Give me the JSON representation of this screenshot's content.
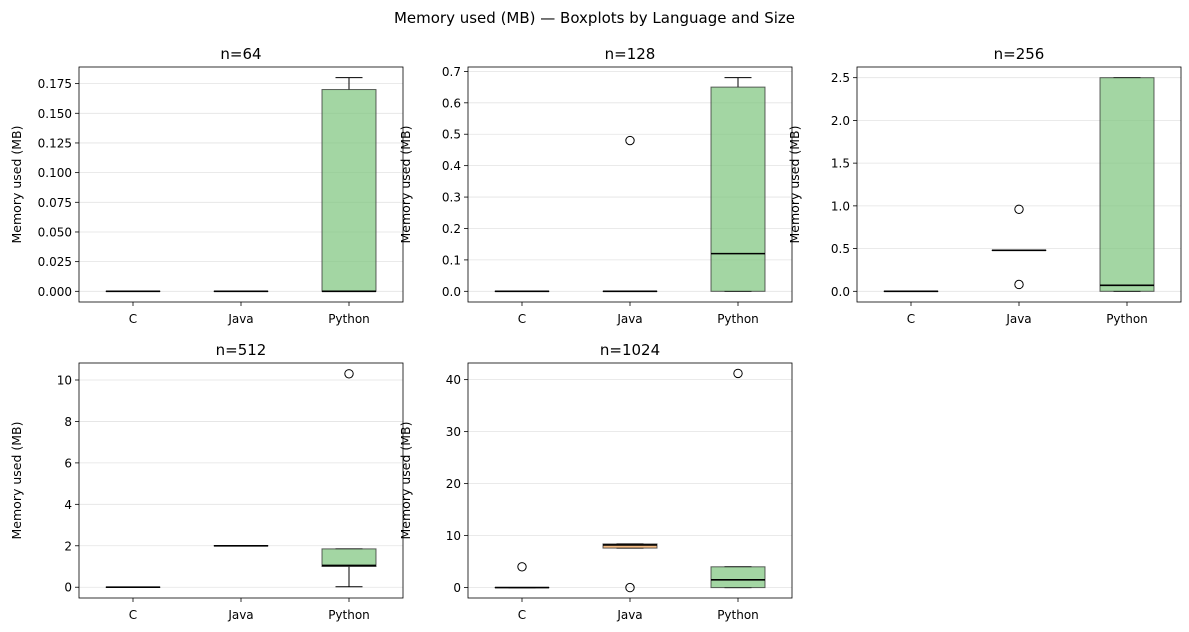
{
  "suptitle": "Memory used (MB) — Boxplots by Language and Size",
  "colors": {
    "C": "#5b8fc9",
    "Java": "#f0a050",
    "Python": "#7cc47c"
  },
  "chart_data": [
    {
      "type": "boxplot",
      "title": "n=64",
      "ylabel": "Memory used (MB)",
      "categories": [
        "C",
        "Java",
        "Python"
      ],
      "ylim": [
        -0.009,
        0.189
      ],
      "yticks": [
        0.0,
        0.025,
        0.05,
        0.075,
        0.1,
        0.125,
        0.15,
        0.175
      ],
      "ytick_labels": [
        "0.000",
        "0.025",
        "0.050",
        "0.075",
        "0.100",
        "0.125",
        "0.150",
        "0.175"
      ],
      "grid": true,
      "boxes": [
        {
          "whislo": 0,
          "q1": 0,
          "med": 0,
          "q3": 0,
          "whishi": 0,
          "fliers": []
        },
        {
          "whislo": 0,
          "q1": 0,
          "med": 0,
          "q3": 0,
          "whishi": 0,
          "fliers": []
        },
        {
          "whislo": 0,
          "q1": 0,
          "med": 0,
          "q3": 0.17,
          "whishi": 0.18,
          "fliers": []
        }
      ]
    },
    {
      "type": "boxplot",
      "title": "n=128",
      "ylabel": "Memory used (MB)",
      "categories": [
        "C",
        "Java",
        "Python"
      ],
      "ylim": [
        -0.034,
        0.714
      ],
      "yticks": [
        0.0,
        0.1,
        0.2,
        0.3,
        0.4,
        0.5,
        0.6,
        0.7
      ],
      "ytick_labels": [
        "0.0",
        "0.1",
        "0.2",
        "0.3",
        "0.4",
        "0.5",
        "0.6",
        "0.7"
      ],
      "grid": true,
      "boxes": [
        {
          "whislo": 0,
          "q1": 0,
          "med": 0,
          "q3": 0,
          "whishi": 0,
          "fliers": []
        },
        {
          "whislo": 0,
          "q1": 0,
          "med": 0,
          "q3": 0,
          "whishi": 0,
          "fliers": [
            0.48
          ]
        },
        {
          "whislo": 0,
          "q1": 0,
          "med": 0.12,
          "q3": 0.65,
          "whishi": 0.68,
          "fliers": []
        }
      ]
    },
    {
      "type": "boxplot",
      "title": "n=256",
      "ylabel": "Memory used (MB)",
      "categories": [
        "C",
        "Java",
        "Python"
      ],
      "ylim": [
        -0.125,
        2.625
      ],
      "yticks": [
        0.0,
        0.5,
        1.0,
        1.5,
        2.0,
        2.5
      ],
      "ytick_labels": [
        "0.0",
        "0.5",
        "1.0",
        "1.5",
        "2.0",
        "2.5"
      ],
      "grid": true,
      "boxes": [
        {
          "whislo": 0,
          "q1": 0,
          "med": 0,
          "q3": 0,
          "whishi": 0,
          "fliers": []
        },
        {
          "whislo": 0.48,
          "q1": 0.48,
          "med": 0.48,
          "q3": 0.48,
          "whishi": 0.48,
          "fliers": [
            0.96,
            0.08
          ]
        },
        {
          "whislo": 0,
          "q1": 0,
          "med": 0.07,
          "q3": 2.5,
          "whishi": 2.5,
          "fliers": []
        }
      ]
    },
    {
      "type": "boxplot",
      "title": "n=512",
      "ylabel": "Memory used (MB)",
      "categories": [
        "C",
        "Java",
        "Python"
      ],
      "ylim": [
        -0.52,
        10.82
      ],
      "yticks": [
        0,
        2,
        4,
        6,
        8,
        10
      ],
      "ytick_labels": [
        "0",
        "2",
        "4",
        "6",
        "8",
        "10"
      ],
      "grid": true,
      "boxes": [
        {
          "whislo": 0,
          "q1": 0,
          "med": 0,
          "q3": 0,
          "whishi": 0,
          "fliers": []
        },
        {
          "whislo": 2.0,
          "q1": 2.0,
          "med": 2.0,
          "q3": 2.0,
          "whishi": 2.0,
          "fliers": []
        },
        {
          "whislo": 0.02,
          "q1": 1.0,
          "med": 1.05,
          "q3": 1.85,
          "whishi": 1.85,
          "fliers": [
            10.3
          ]
        }
      ]
    },
    {
      "type": "boxplot",
      "title": "n=1024",
      "ylabel": "Memory used (MB)",
      "categories": [
        "C",
        "Java",
        "Python"
      ],
      "ylim": [
        -2.0,
        43.2
      ],
      "yticks": [
        0,
        10,
        20,
        30,
        40
      ],
      "ytick_labels": [
        "0",
        "10",
        "20",
        "30",
        "40"
      ],
      "grid": true,
      "boxes": [
        {
          "whislo": 0,
          "q1": 0,
          "med": 0,
          "q3": 0,
          "whishi": 0,
          "fliers": [
            4.0
          ]
        },
        {
          "whislo": 7.6,
          "q1": 7.6,
          "med": 8.2,
          "q3": 8.4,
          "whishi": 8.4,
          "fliers": [
            0.0
          ]
        },
        {
          "whislo": 0,
          "q1": 0,
          "med": 1.5,
          "q3": 4.0,
          "whishi": 4.0,
          "fliers": [
            41.2
          ]
        }
      ]
    }
  ]
}
